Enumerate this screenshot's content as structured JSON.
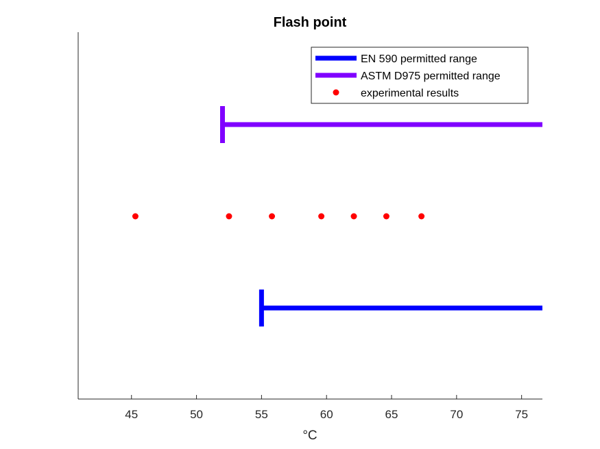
{
  "chart_data": {
    "type": "scatter",
    "title": "Flash point",
    "xlabel": "°C",
    "ylabel": "",
    "xlim": [
      40.9,
      76.6
    ],
    "xticks": [
      45,
      50,
      55,
      60,
      65,
      70,
      75
    ],
    "grid": false,
    "legend_position": "top-right",
    "series": [
      {
        "name": "EN 590 permitted range",
        "kind": "range",
        "color": "#0000ff",
        "min": 55,
        "max": null,
        "row": 1
      },
      {
        "name": "ASTM D975 permitted range",
        "kind": "range",
        "color": "#8000ff",
        "min": 52,
        "max": null,
        "row": 3
      },
      {
        "name": "experimental results",
        "kind": "points",
        "color": "#ff0000",
        "row": 2,
        "values": [
          45.3,
          52.5,
          55.8,
          59.6,
          62.1,
          64.6,
          67.3
        ]
      }
    ]
  }
}
